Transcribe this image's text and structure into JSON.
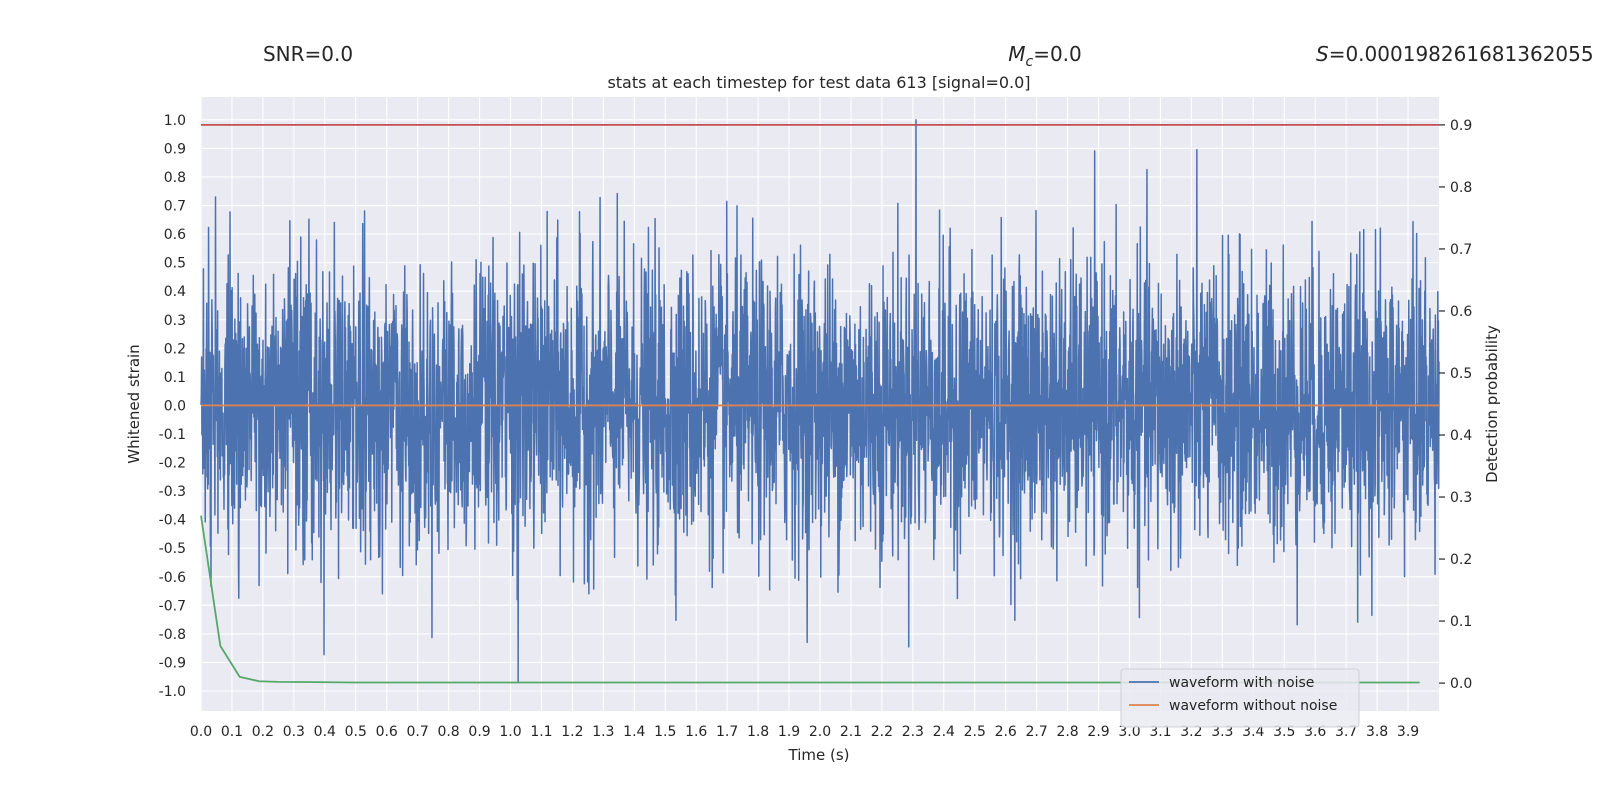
{
  "header": {
    "snr": "SNR=0.0",
    "mc_symbol": "M",
    "mc_sub": "c",
    "mc_value": "=0.0",
    "s_symbol": "S",
    "s_value": "=0.000198261681362055"
  },
  "chart_data": {
    "type": "line",
    "title": "stats at each timestep for test data 613 [signal=0.0]",
    "xlabel": "Time (s)",
    "ylabel": "Whitened strain",
    "y2label": "Detection probability",
    "xlim": [
      0.0,
      4.0
    ],
    "ylim": [
      -1.07,
      1.08
    ],
    "y2lim": [
      -0.045,
      0.945
    ],
    "x_ticks": [
      0.0,
      0.1,
      0.2,
      0.3,
      0.4,
      0.5,
      0.6,
      0.7,
      0.8,
      0.9,
      1.0,
      1.1,
      1.2,
      1.3,
      1.4,
      1.5,
      1.6,
      1.7,
      1.8,
      1.9,
      2.0,
      2.1,
      2.2,
      2.3,
      2.4,
      2.5,
      2.6,
      2.7,
      2.8,
      2.9,
      3.0,
      3.1,
      3.2,
      3.3,
      3.4,
      3.5,
      3.6,
      3.7,
      3.8,
      3.9
    ],
    "y_ticks": [
      1.0,
      0.9,
      0.8,
      0.7,
      0.6,
      0.5,
      0.4,
      0.3,
      0.2,
      0.1,
      0.0,
      -0.1,
      -0.2,
      -0.3,
      -0.4,
      -0.5,
      -0.6,
      -0.7,
      -0.8,
      -0.9,
      -1.0
    ],
    "y2_ticks": [
      0.9,
      0.8,
      0.7,
      0.6,
      0.5,
      0.4,
      0.3,
      0.2,
      0.1,
      0.0
    ],
    "grid": true,
    "legend_position": "bottom-right",
    "series": [
      {
        "name": "waveform with noise",
        "axis": "left",
        "color": "#4c72b0",
        "kind": "noise",
        "x_range": [
          0.0,
          4.0
        ],
        "approx_std": 0.25,
        "peak": 1.0,
        "trough": -0.97
      },
      {
        "name": "waveform without noise",
        "axis": "left",
        "color": "#dd8452",
        "kind": "line",
        "x": [
          0.0,
          4.0
        ],
        "y": [
          0.0,
          0.0
        ]
      },
      {
        "axis": "right",
        "color": "#55a868",
        "kind": "line",
        "x": [
          0.0,
          0.0625,
          0.125,
          0.1875,
          0.25,
          0.375,
          0.5,
          0.75,
          1.0,
          2.0,
          3.0,
          3.9375
        ],
        "y": [
          0.27,
          0.06,
          0.01,
          0.003,
          0.002,
          0.0015,
          0.001,
          0.001,
          0.001,
          0.001,
          0.001,
          0.001
        ]
      },
      {
        "axis": "right",
        "color": "#c44e52",
        "kind": "line",
        "x": [
          0.0,
          4.0
        ],
        "y": [
          0.9,
          0.9
        ]
      }
    ]
  }
}
